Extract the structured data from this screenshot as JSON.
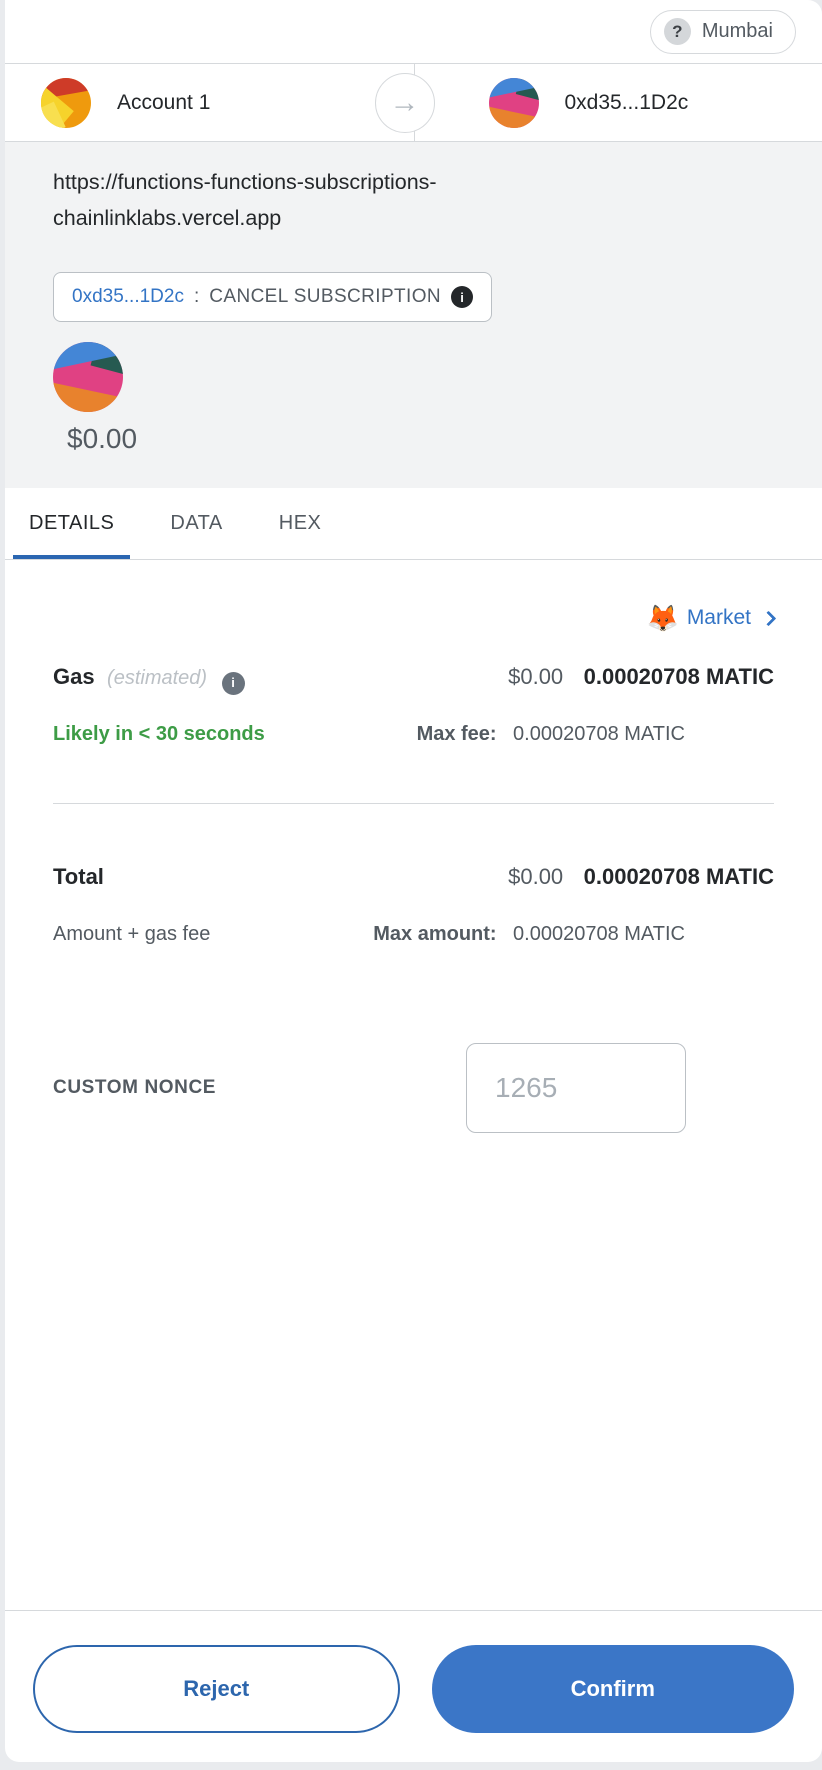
{
  "network": {
    "label": "Mumbai",
    "icon_glyph": "?"
  },
  "from_account": {
    "name": "Account 1"
  },
  "to_account": {
    "address": "0xd35...1D2c"
  },
  "arrow_glyph": "→",
  "origin": {
    "line1": "https://functions-functions-subscriptions-",
    "line2": "chainlinklabs.vercel.app"
  },
  "method_pill": {
    "address": "0xd35...1D2c",
    "separator": ":",
    "method": "CANCEL SUBSCRIPTION",
    "info_glyph": "i"
  },
  "hero_amount": "$0.00",
  "tabs": {
    "details": "DETAILS",
    "data": "DATA",
    "hex": "HEX"
  },
  "market": {
    "emoji": "🦊",
    "label": "Market"
  },
  "gas": {
    "label": "Gas",
    "qualifier": "(estimated)",
    "info_glyph": "i",
    "fiat": "$0.00",
    "crypto": "0.00020708 MATIC",
    "time": "Likely in < 30 seconds",
    "max_fee_label": "Max fee:",
    "max_fee": "0.00020708 MATIC"
  },
  "total": {
    "label": "Total",
    "fiat": "$0.00",
    "crypto": "0.00020708 MATIC",
    "description": "Amount + gas fee",
    "max_amount_label": "Max amount:",
    "max_amount": "0.00020708 MATIC"
  },
  "nonce": {
    "label": "CUSTOM NONCE",
    "placeholder": "1265"
  },
  "actions": {
    "reject": "Reject",
    "confirm": "Confirm"
  },
  "colors": {
    "accent_blue": "#3b76c7",
    "link_blue": "#3374c5",
    "success_green": "#3d9c46",
    "section_bg": "#f2f3f4"
  }
}
